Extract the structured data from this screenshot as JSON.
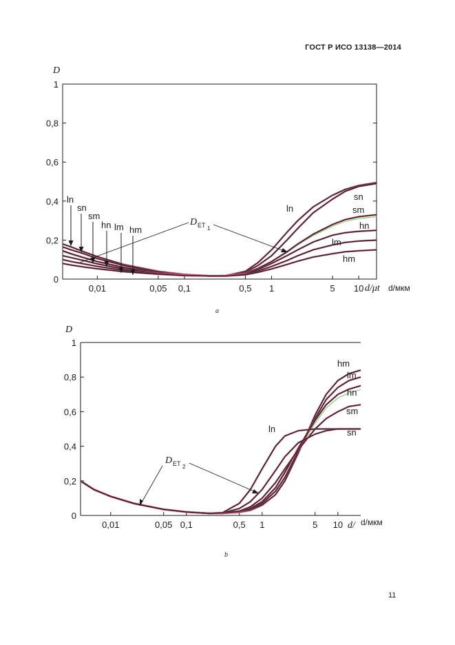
{
  "header": {
    "standard": "ГОСТ Р ИСО 13138—2014"
  },
  "page_number": "11",
  "colors": {
    "curve": "#231f20",
    "model": "#d6537a",
    "reference": "#7cc96a"
  },
  "chart_data": [
    {
      "type": "line",
      "panel_label": "a",
      "xscale": "log",
      "xlim": [
        0.004,
        16
      ],
      "ylim": [
        0,
        1
      ],
      "xticks": [
        "0,01",
        "0,05",
        "0,1",
        "0,5",
        "1",
        "5",
        "10"
      ],
      "xtick_values": [
        0.01,
        0.05,
        0.1,
        0.5,
        1,
        5,
        10
      ],
      "yticks": [
        "0",
        "0,2",
        "0,4",
        "0,6",
        "0,8",
        "1"
      ],
      "ytick_values": [
        0,
        0.2,
        0.4,
        0.6,
        0.8,
        1
      ],
      "xlabel": "d/мкм",
      "xlabel_axis": "d/μt",
      "ylabel": "D",
      "annotation": {
        "main": "D",
        "sub": "ET",
        "subsub": "1"
      },
      "arrow_labels": [
        "ln",
        "sn",
        "sm",
        "hn",
        "lm",
        "hm"
      ],
      "series": [
        {
          "name": "ln",
          "x": [
            0.004,
            0.005,
            0.007,
            0.01,
            0.02,
            0.05,
            0.1,
            0.2,
            0.3,
            0.5,
            0.7,
            1,
            1.5,
            2,
            3,
            5,
            7,
            10,
            16
          ],
          "y": [
            0.18,
            0.165,
            0.14,
            0.115,
            0.075,
            0.04,
            0.024,
            0.016,
            0.018,
            0.04,
            0.085,
            0.15,
            0.24,
            0.3,
            0.37,
            0.43,
            0.46,
            0.48,
            0.495
          ]
        },
        {
          "name": "sn",
          "x": [
            0.004,
            0.005,
            0.007,
            0.01,
            0.02,
            0.05,
            0.1,
            0.2,
            0.3,
            0.5,
            0.7,
            1,
            1.5,
            2,
            3,
            5,
            7,
            10,
            16
          ],
          "y": [
            0.165,
            0.15,
            0.13,
            0.105,
            0.07,
            0.038,
            0.023,
            0.016,
            0.017,
            0.035,
            0.07,
            0.12,
            0.2,
            0.26,
            0.34,
            0.41,
            0.45,
            0.475,
            0.49
          ]
        },
        {
          "name": "sm",
          "x": [
            0.004,
            0.005,
            0.007,
            0.01,
            0.02,
            0.05,
            0.1,
            0.2,
            0.3,
            0.5,
            0.7,
            1,
            1.5,
            2,
            3,
            5,
            7,
            10,
            16
          ],
          "y": [
            0.145,
            0.13,
            0.11,
            0.09,
            0.06,
            0.034,
            0.021,
            0.016,
            0.016,
            0.03,
            0.055,
            0.09,
            0.14,
            0.18,
            0.23,
            0.28,
            0.305,
            0.32,
            0.33
          ]
        },
        {
          "name": "hn",
          "x": [
            0.004,
            0.005,
            0.007,
            0.01,
            0.02,
            0.05,
            0.1,
            0.2,
            0.3,
            0.5,
            0.7,
            1,
            1.5,
            2,
            3,
            5,
            7,
            10,
            16
          ],
          "y": [
            0.12,
            0.11,
            0.095,
            0.078,
            0.052,
            0.03,
            0.02,
            0.016,
            0.016,
            0.028,
            0.05,
            0.08,
            0.12,
            0.15,
            0.19,
            0.225,
            0.238,
            0.245,
            0.25
          ]
        },
        {
          "name": "lm",
          "x": [
            0.004,
            0.005,
            0.007,
            0.01,
            0.02,
            0.05,
            0.1,
            0.2,
            0.3,
            0.5,
            0.7,
            1,
            1.5,
            2,
            3,
            5,
            7,
            10,
            16
          ],
          "y": [
            0.1,
            0.09,
            0.078,
            0.065,
            0.045,
            0.028,
            0.019,
            0.016,
            0.016,
            0.025,
            0.042,
            0.065,
            0.095,
            0.12,
            0.15,
            0.175,
            0.188,
            0.195,
            0.2
          ]
        },
        {
          "name": "hm",
          "x": [
            0.004,
            0.005,
            0.007,
            0.01,
            0.02,
            0.05,
            0.1,
            0.2,
            0.3,
            0.5,
            0.7,
            1,
            1.5,
            2,
            3,
            5,
            7,
            10,
            16
          ],
          "y": [
            0.08,
            0.072,
            0.062,
            0.053,
            0.038,
            0.025,
            0.018,
            0.016,
            0.016,
            0.022,
            0.035,
            0.052,
            0.075,
            0.092,
            0.113,
            0.13,
            0.14,
            0.145,
            0.15
          ]
        }
      ]
    },
    {
      "type": "line",
      "panel_label": "b",
      "xscale": "log",
      "xlim": [
        0.004,
        20
      ],
      "ylim": [
        0,
        1
      ],
      "xticks": [
        "0,01",
        "0,05",
        "0,1",
        "0,5",
        "1",
        "5",
        "10"
      ],
      "xtick_values": [
        0.01,
        0.05,
        0.1,
        0.5,
        1,
        5,
        10
      ],
      "yticks": [
        "0",
        "0,2",
        "0,4",
        "0,6",
        "0,8",
        "1"
      ],
      "ytick_values": [
        0,
        0.2,
        0.4,
        0.6,
        0.8,
        1
      ],
      "xlabel": "d/мкм",
      "xlabel_axis": "d/",
      "ylabel": "D",
      "annotation": {
        "main": "D",
        "sub": "ET",
        "subsub": "2"
      },
      "series": [
        {
          "name": "hm",
          "x": [
            0.004,
            0.006,
            0.01,
            0.02,
            0.05,
            0.1,
            0.2,
            0.3,
            0.5,
            0.7,
            1,
            1.5,
            2,
            3,
            5,
            7,
            10,
            14,
            20
          ],
          "y": [
            0.2,
            0.15,
            0.11,
            0.07,
            0.035,
            0.02,
            0.012,
            0.012,
            0.018,
            0.03,
            0.06,
            0.12,
            0.2,
            0.36,
            0.58,
            0.7,
            0.78,
            0.82,
            0.84
          ]
        },
        {
          "name": "lm",
          "x": [
            0.004,
            0.006,
            0.01,
            0.02,
            0.05,
            0.1,
            0.2,
            0.3,
            0.5,
            0.7,
            1,
            1.5,
            2,
            3,
            5,
            7,
            10,
            14,
            20
          ],
          "y": [
            0.2,
            0.15,
            0.11,
            0.07,
            0.035,
            0.02,
            0.012,
            0.012,
            0.02,
            0.035,
            0.07,
            0.14,
            0.22,
            0.37,
            0.56,
            0.67,
            0.74,
            0.78,
            0.8
          ]
        },
        {
          "name": "hn",
          "x": [
            0.004,
            0.006,
            0.01,
            0.02,
            0.05,
            0.1,
            0.2,
            0.3,
            0.5,
            0.7,
            1,
            1.5,
            2,
            3,
            5,
            7,
            10,
            14,
            20
          ],
          "y": [
            0.2,
            0.15,
            0.11,
            0.07,
            0.035,
            0.02,
            0.012,
            0.012,
            0.022,
            0.04,
            0.08,
            0.16,
            0.25,
            0.39,
            0.55,
            0.64,
            0.7,
            0.73,
            0.75
          ]
        },
        {
          "name": "sm",
          "x": [
            0.004,
            0.006,
            0.01,
            0.02,
            0.05,
            0.1,
            0.2,
            0.3,
            0.5,
            0.7,
            1,
            1.5,
            2,
            3,
            5,
            7,
            10,
            14,
            20
          ],
          "y": [
            0.2,
            0.15,
            0.11,
            0.07,
            0.035,
            0.02,
            0.012,
            0.013,
            0.025,
            0.05,
            0.1,
            0.19,
            0.27,
            0.38,
            0.5,
            0.56,
            0.6,
            0.63,
            0.64
          ]
        },
        {
          "name": "sn",
          "x": [
            0.004,
            0.006,
            0.01,
            0.02,
            0.05,
            0.1,
            0.2,
            0.3,
            0.5,
            0.7,
            1,
            1.5,
            2,
            3,
            5,
            7,
            10,
            14,
            20
          ],
          "y": [
            0.2,
            0.15,
            0.11,
            0.07,
            0.035,
            0.02,
            0.012,
            0.014,
            0.04,
            0.08,
            0.15,
            0.26,
            0.34,
            0.42,
            0.47,
            0.49,
            0.5,
            0.5,
            0.5
          ]
        },
        {
          "name": "ln",
          "x": [
            0.004,
            0.006,
            0.01,
            0.02,
            0.05,
            0.1,
            0.2,
            0.3,
            0.5,
            0.7,
            1,
            1.5,
            2,
            3,
            5,
            7,
            10,
            14,
            20
          ],
          "y": [
            0.2,
            0.15,
            0.11,
            0.07,
            0.035,
            0.02,
            0.012,
            0.016,
            0.07,
            0.15,
            0.27,
            0.4,
            0.46,
            0.49,
            0.5,
            0.5,
            0.5,
            0.5,
            0.5
          ]
        }
      ]
    }
  ]
}
